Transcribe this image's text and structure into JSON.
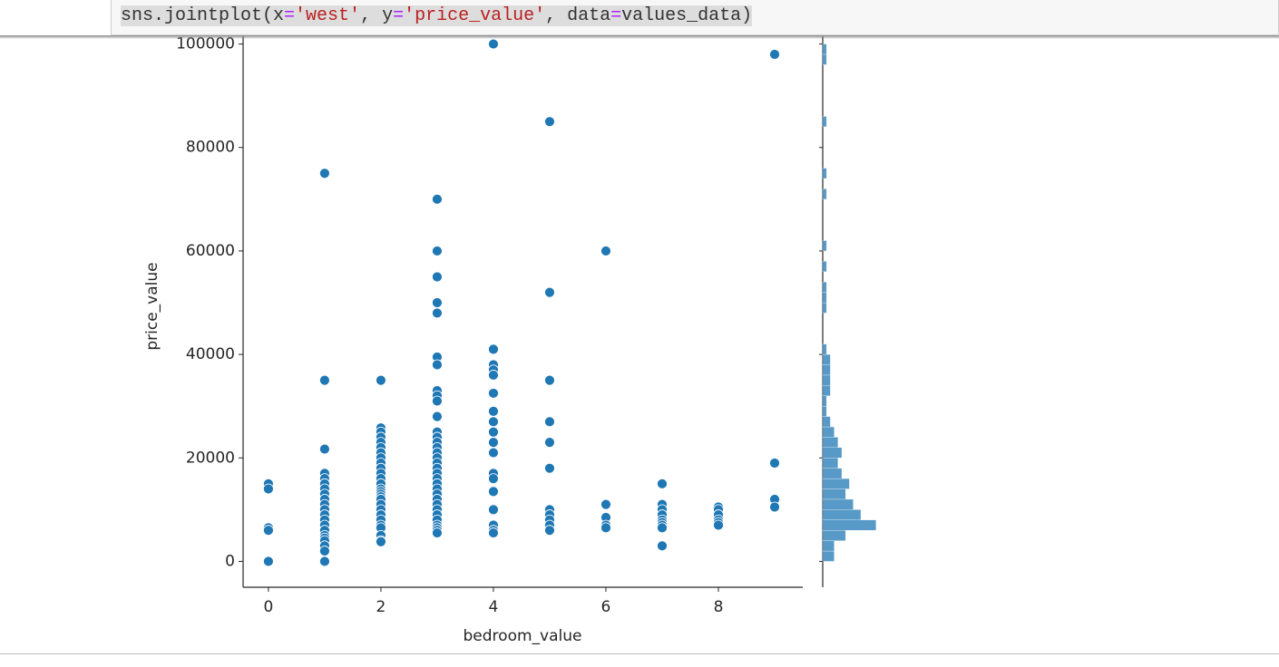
{
  "code": [
    "sns.jointplot(x",
    "=",
    "'west'",
    ", y",
    "=",
    "'price_value'",
    ", data",
    "=",
    "values_data)"
  ],
  "chart_data": [
    {
      "type": "scatter",
      "xlabel": "bedroom_value",
      "ylabel": "price_value",
      "color": "#1f77b4",
      "xlim": [
        -0.45,
        9.5
      ],
      "ylim": [
        -5000,
        101500
      ],
      "xticks": [
        0,
        2,
        4,
        6,
        8
      ],
      "yticks": [
        0,
        20000,
        40000,
        60000,
        80000,
        100000
      ],
      "x": [
        0,
        0,
        0,
        0,
        0,
        1,
        1,
        1,
        1,
        1,
        1,
        1,
        1,
        1,
        1,
        1,
        1,
        1,
        1,
        1,
        1,
        1,
        1,
        1,
        1,
        1,
        2,
        2,
        2,
        2,
        2,
        2,
        2,
        2,
        2,
        2,
        2,
        2,
        2,
        2,
        2,
        2,
        2,
        2,
        2,
        2,
        2,
        2,
        2,
        2,
        2,
        2,
        2,
        3,
        3,
        3,
        3,
        3,
        3,
        3,
        3,
        3,
        3,
        3,
        3,
        3,
        3,
        3,
        3,
        3,
        3,
        3,
        3,
        3,
        3,
        3,
        3,
        3,
        3,
        3,
        3,
        3,
        3,
        3,
        3,
        3,
        4,
        4,
        4,
        4,
        4,
        4,
        4,
        4,
        4,
        4,
        4,
        4,
        4,
        4,
        4,
        4,
        4,
        4,
        5,
        5,
        5,
        5,
        5,
        5,
        5,
        5,
        5,
        5,
        5,
        6,
        6,
        6,
        6,
        6,
        7,
        7,
        7,
        7,
        7,
        7,
        7,
        7,
        7,
        8,
        8,
        8,
        8,
        8,
        8,
        9,
        9,
        9,
        9
      ],
      "values": [
        15000,
        14000,
        6500,
        6000,
        0,
        75000,
        35000,
        21700,
        17000,
        16000,
        15000,
        14000,
        13000,
        12000,
        11000,
        10000,
        9000,
        8000,
        7000,
        6000,
        5000,
        4500,
        4000,
        3000,
        2000,
        0,
        35000,
        25800,
        25000,
        24000,
        23000,
        22000,
        21000,
        20000,
        19000,
        18000,
        17000,
        16000,
        15000,
        14000,
        13500,
        13000,
        12500,
        12000,
        11000,
        10000,
        9000,
        8000,
        7000,
        6500,
        5000,
        4000,
        3800,
        70000,
        60000,
        55000,
        50000,
        48000,
        39500,
        38000,
        33000,
        32000,
        31000,
        28000,
        25000,
        24000,
        23000,
        22000,
        21000,
        20000,
        19000,
        18000,
        17000,
        16000,
        15000,
        14000,
        13000,
        12000,
        11000,
        10000,
        9000,
        8000,
        7000,
        6500,
        6000,
        5500,
        100000,
        41000,
        38000,
        37000,
        36000,
        32500,
        29000,
        27000,
        25000,
        23000,
        21000,
        17000,
        16000,
        13500,
        10000,
        7000,
        6000,
        5500,
        85000,
        52000,
        35000,
        27000,
        23000,
        18000,
        10000,
        9000,
        8000,
        7000,
        6000,
        60000,
        11000,
        8500,
        7000,
        6500,
        15000,
        11000,
        10000,
        9000,
        8000,
        7500,
        7000,
        6500,
        3000,
        10500,
        10000,
        9000,
        8000,
        7500,
        7000,
        98000,
        19000,
        12000,
        10500
      ]
    },
    {
      "type": "histogram",
      "color": "#1f77b4",
      "xlim": [
        0,
        25
      ],
      "ylim": [
        -5000,
        101500
      ],
      "bins": [
        0,
        2000,
        4000,
        6000,
        8000,
        10000,
        12000,
        14000,
        16000,
        18000,
        20000,
        22000,
        24000,
        26000,
        28000,
        30000,
        32000,
        34000,
        36000,
        38000,
        40000,
        42000,
        44000,
        46000,
        48000,
        50000,
        52000,
        54000,
        56000,
        58000,
        60000,
        62000,
        64000,
        66000,
        68000,
        70000,
        72000,
        74000,
        76000,
        78000,
        80000,
        82000,
        84000,
        86000,
        88000,
        90000,
        92000,
        94000,
        96000,
        98000,
        100000
      ],
      "counts": [
        3,
        3,
        6,
        14,
        10,
        8,
        6,
        7,
        5,
        4,
        5,
        4,
        3,
        2,
        1,
        1,
        2,
        2,
        2,
        2,
        1,
        0,
        0,
        0,
        1,
        1,
        1,
        0,
        1,
        0,
        1,
        0,
        0,
        0,
        0,
        1,
        0,
        1,
        0,
        0,
        0,
        0,
        1,
        0,
        0,
        0,
        0,
        0,
        1,
        1
      ]
    }
  ]
}
